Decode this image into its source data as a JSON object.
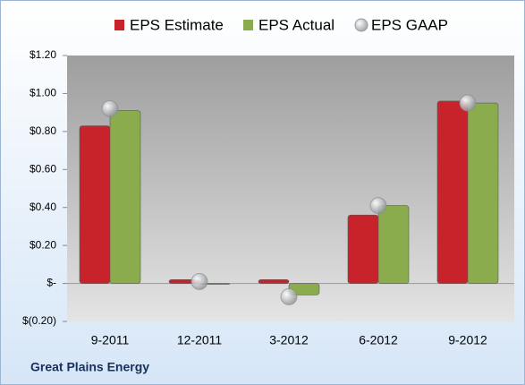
{
  "chart_data": {
    "type": "bar",
    "caption": "Great Plains Energy",
    "categories": [
      "9-2011",
      "12-2011",
      "3-2012",
      "6-2012",
      "9-2012"
    ],
    "series": [
      {
        "name": "EPS Estimate",
        "color": "#c8222b",
        "values": [
          0.83,
          0.02,
          0.02,
          0.36,
          0.96
        ]
      },
      {
        "name": "EPS Actual",
        "color": "#8aac4c",
        "values": [
          0.91,
          0.0,
          -0.06,
          0.41,
          0.95
        ]
      },
      {
        "name": "EPS GAAP",
        "color": "#a9adb3",
        "marker": "circle",
        "values": [
          0.92,
          0.01,
          -0.07,
          0.41,
          0.95
        ]
      }
    ],
    "ylim": [
      -0.2,
      1.2
    ],
    "yticks": [
      {
        "value": -0.2,
        "label": "$(0.20)"
      },
      {
        "value": 0,
        "label": "$-"
      },
      {
        "value": 0.2,
        "label": "$0.20"
      },
      {
        "value": 0.4,
        "label": "$0.40"
      },
      {
        "value": 0.6,
        "label": "$0.60"
      },
      {
        "value": 0.8,
        "label": "$0.80"
      },
      {
        "value": 1.0,
        "label": "$1.00"
      },
      {
        "value": 1.2,
        "label": "$1.20"
      }
    ],
    "grid": false,
    "legend": "top"
  }
}
